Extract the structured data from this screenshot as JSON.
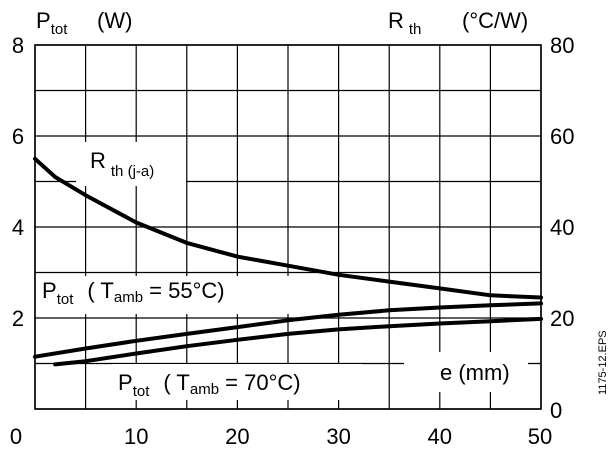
{
  "chart_data": {
    "type": "line",
    "header": {
      "left_main": "P",
      "left_sub": "tot",
      "left_unit": "(W)",
      "right_main": "R",
      "right_sub": "th",
      "right_unit": "(°C/W)"
    },
    "x_axis": {
      "label": "e (mm)",
      "range": [
        0,
        50
      ],
      "ticks": [
        "0",
        "10",
        "20",
        "30",
        "40",
        "50"
      ],
      "grid_step": 5
    },
    "y_left": {
      "range": [
        0,
        8
      ],
      "ticks": [
        "2",
        "4",
        "6",
        "8"
      ],
      "grid_step": 1
    },
    "y_right": {
      "range": [
        0,
        80
      ],
      "ticks": [
        "0",
        "20",
        "40",
        "60",
        "80"
      ]
    },
    "series": [
      {
        "name": "R th (j-a)",
        "label_main": "R",
        "label_sub": "th (j-a)",
        "axis": "right",
        "x": [
          0,
          2,
          5,
          10,
          15,
          20,
          25,
          30,
          35,
          40,
          45,
          50
        ],
        "y": [
          55,
          51,
          47,
          41,
          36.5,
          33.5,
          31.5,
          29.5,
          28,
          26.5,
          25,
          24.5
        ]
      },
      {
        "name": "Ptot (Tamb = 55°C)",
        "label_main": "P",
        "label_sub": "tot",
        "label_paren_open": "( T",
        "label_sub2": "amb",
        "label_rest": " = 55°C)",
        "axis": "left",
        "x": [
          0,
          5,
          10,
          15,
          20,
          25,
          30,
          35,
          40,
          45,
          50
        ],
        "y": [
          1.15,
          1.33,
          1.5,
          1.65,
          1.8,
          1.95,
          2.07,
          2.17,
          2.23,
          2.28,
          2.32
        ]
      },
      {
        "name": "Ptot (Tamb = 70°C)",
        "label_main": "P",
        "label_sub": "tot",
        "label_paren_open": "( T",
        "label_sub2": "amb",
        "label_rest": " = 70°C)",
        "axis": "left",
        "x": [
          2,
          5,
          10,
          15,
          20,
          25,
          30,
          35,
          40,
          45,
          50
        ],
        "y": [
          0.98,
          1.05,
          1.22,
          1.38,
          1.52,
          1.65,
          1.75,
          1.82,
          1.88,
          1.93,
          1.98
        ]
      }
    ],
    "grid": true,
    "side_note": "1175-12.EPS"
  }
}
